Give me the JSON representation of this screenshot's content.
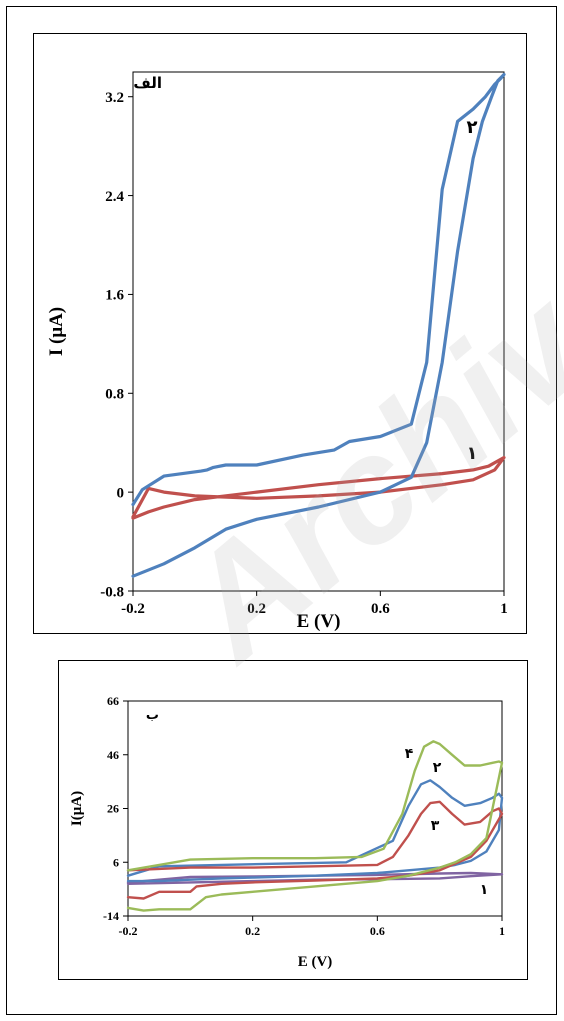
{
  "watermark": "Archive",
  "chart_data": [
    {
      "id": "a",
      "type": "line",
      "panel_label": "الف",
      "xlabel": "E (V)",
      "ylabel": "I (μA)",
      "xlim": [
        -0.2,
        1.0
      ],
      "ylim": [
        -0.8,
        3.4
      ],
      "xticks": [
        -0.2,
        0.2,
        0.6,
        1.0
      ],
      "xtick_labels": [
        "-0.2",
        "0.2",
        "0.6",
        "1"
      ],
      "yticks": [
        -0.8,
        0,
        0.8,
        1.6,
        2.4,
        3.2
      ],
      "ytick_labels": [
        "-0.8",
        "0",
        "0.8",
        "1.6",
        "2.4",
        "3.2"
      ],
      "grid": false,
      "series": [
        {
          "name": "۱",
          "color": "#c0504d",
          "x": [
            -0.2,
            -0.15,
            -0.1,
            0.0,
            0.2,
            0.4,
            0.6,
            0.8,
            0.9,
            0.95,
            1.0,
            0.97,
            0.9,
            0.8,
            0.6,
            0.4,
            0.2,
            0.0,
            -0.1,
            -0.15,
            -0.2
          ],
          "y": [
            -0.21,
            -0.16,
            -0.12,
            -0.06,
            0.0,
            0.06,
            0.11,
            0.15,
            0.18,
            0.21,
            0.28,
            0.18,
            0.1,
            0.06,
            0.0,
            -0.03,
            -0.05,
            -0.03,
            0.0,
            0.03,
            -0.2
          ]
        },
        {
          "name": "۲",
          "color": "#4f81bd",
          "x": [
            -0.2,
            -0.1,
            0.0,
            0.1,
            0.2,
            0.4,
            0.6,
            0.7,
            0.75,
            0.8,
            0.85,
            0.9,
            0.93,
            0.96,
            0.98,
            1.0,
            0.99,
            0.97,
            0.94,
            0.9,
            0.85,
            0.8,
            0.75,
            0.7,
            0.6,
            0.5,
            0.45,
            0.35,
            0.2,
            0.1,
            0.06,
            0.04,
            0.02,
            -0.1,
            -0.17,
            -0.2
          ],
          "y": [
            -0.68,
            -0.58,
            -0.45,
            -0.3,
            -0.22,
            -0.12,
            0.0,
            0.12,
            0.4,
            1.05,
            1.95,
            2.7,
            3.0,
            3.2,
            3.33,
            3.38,
            3.35,
            3.3,
            3.2,
            3.1,
            3.0,
            2.45,
            1.05,
            0.55,
            0.45,
            0.41,
            0.34,
            0.3,
            0.22,
            0.22,
            0.2,
            0.18,
            0.17,
            0.13,
            0.02,
            -0.1
          ]
        }
      ]
    },
    {
      "id": "b",
      "type": "line",
      "panel_label": "ب",
      "xlabel": "E (V)",
      "ylabel": "I(μA)",
      "xlim": [
        -0.2,
        1.0
      ],
      "ylim": [
        -14,
        66
      ],
      "xticks": [
        -0.2,
        0.2,
        0.6,
        1.0
      ],
      "xtick_labels": [
        "-0.2",
        "0.2",
        "0.6",
        "1"
      ],
      "yticks": [
        -14,
        6,
        26,
        46,
        66
      ],
      "ytick_labels": [
        "-14",
        "6",
        "26",
        "46",
        "66"
      ],
      "grid": false,
      "series": [
        {
          "name": "۱",
          "color": "#8064a2",
          "x": [
            -0.2,
            0.0,
            0.2,
            0.4,
            0.6,
            0.8,
            0.9,
            1.0,
            0.9,
            0.8,
            0.6,
            0.4,
            0.2,
            0.0,
            -0.2
          ],
          "y": [
            -2.0,
            -1.5,
            -1.0,
            -0.5,
            -0.3,
            0.0,
            0.8,
            1.5,
            2.0,
            1.8,
            1.3,
            1.0,
            0.7,
            0.5,
            -1.5
          ]
        },
        {
          "name": "۲",
          "color": "#4f81bd",
          "x": [
            -0.2,
            -0.1,
            0.0,
            0.1,
            0.2,
            0.4,
            0.6,
            0.7,
            0.8,
            0.85,
            0.9,
            0.95,
            0.99,
            1.0,
            0.99,
            0.97,
            0.93,
            0.88,
            0.84,
            0.8,
            0.77,
            0.74,
            0.7,
            0.65,
            0.5,
            0.3,
            0.1,
            -0.1,
            -0.2
          ],
          "y": [
            -1.0,
            -1.0,
            -0.5,
            0.0,
            0.3,
            1.0,
            2.0,
            3.0,
            4.0,
            5.0,
            6.5,
            10.0,
            18.0,
            30.0,
            31.5,
            30.0,
            28.0,
            27.0,
            30.0,
            34.0,
            36.5,
            35.0,
            27.0,
            14.0,
            6.0,
            5.5,
            5.0,
            4.5,
            1.0
          ]
        },
        {
          "name": "۳",
          "color": "#c0504d",
          "x": [
            -0.2,
            -0.15,
            -0.1,
            0.0,
            0.02,
            0.1,
            0.2,
            0.4,
            0.6,
            0.7,
            0.8,
            0.9,
            0.95,
            1.0,
            0.99,
            0.97,
            0.93,
            0.88,
            0.84,
            0.8,
            0.77,
            0.74,
            0.7,
            0.65,
            0.6,
            0.4,
            0.2,
            0.0,
            -0.2
          ],
          "y": [
            -7.0,
            -7.5,
            -5.0,
            -5.0,
            -3.0,
            -2.0,
            -1.5,
            -0.8,
            0.0,
            1.0,
            3.0,
            8.0,
            14.0,
            24.0,
            26.0,
            25.0,
            21.0,
            20.0,
            24.0,
            28.5,
            28.0,
            24.0,
            16.0,
            8.0,
            5.0,
            4.5,
            4.0,
            4.0,
            3.0
          ]
        },
        {
          "name": "۴",
          "color": "#9bbb59",
          "x": [
            -0.2,
            -0.15,
            -0.1,
            0.0,
            0.05,
            0.1,
            0.2,
            0.4,
            0.6,
            0.7,
            0.8,
            0.85,
            0.9,
            0.95,
            1.0,
            0.99,
            0.97,
            0.93,
            0.88,
            0.84,
            0.8,
            0.78,
            0.75,
            0.72,
            0.68,
            0.62,
            0.55,
            0.4,
            0.2,
            0.0,
            -0.1,
            -0.2
          ],
          "y": [
            -11.0,
            -12.0,
            -11.5,
            -11.5,
            -7.0,
            -6.0,
            -5.0,
            -3.0,
            -1.0,
            1.0,
            4.0,
            6.0,
            9.0,
            15.0,
            43.0,
            43.5,
            43.0,
            42.0,
            42.0,
            46.0,
            50.0,
            51.0,
            49.0,
            40.0,
            24.0,
            11.0,
            8.0,
            7.5,
            7.5,
            7.0,
            5.0,
            3.0
          ]
        }
      ]
    }
  ]
}
